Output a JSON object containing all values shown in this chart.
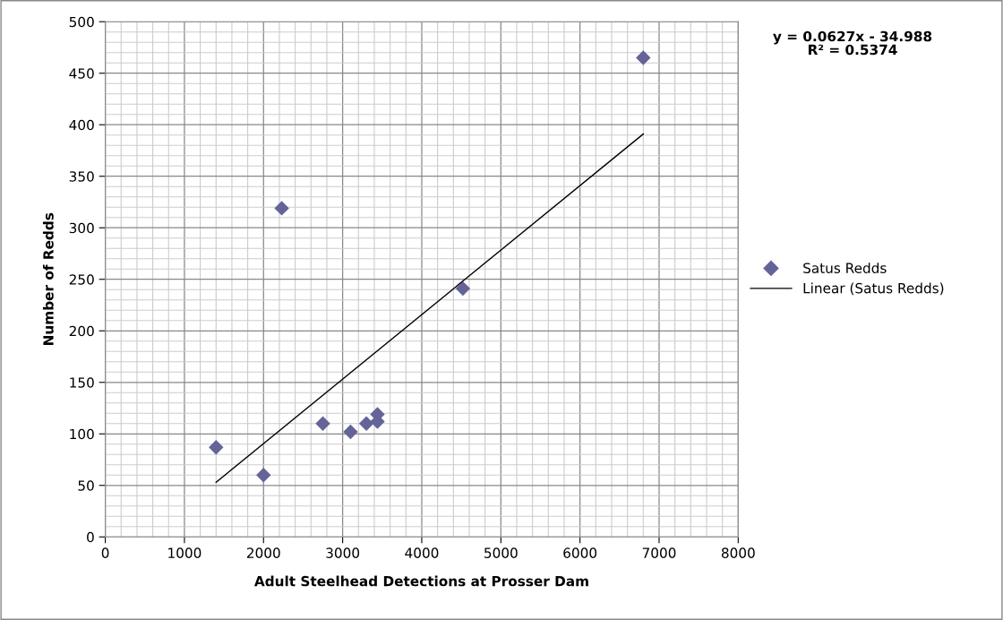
{
  "chart_data": {
    "type": "scatter",
    "xlabel": "Adult Steelhead Detections at Prosser Dam",
    "ylabel": "Number of Redds",
    "x": [
      1400,
      2000,
      2230,
      2750,
      3100,
      3300,
      3440,
      3440,
      4520,
      6800
    ],
    "series": [
      {
        "name": "Satus Redds",
        "color": "#646499",
        "marker": "diamond",
        "values": [
          87,
          60,
          319,
          110,
          102,
          110,
          119,
          112,
          241,
          465
        ]
      },
      {
        "name": "Linear (Satus Redds)",
        "color": "#000000",
        "type": "line",
        "marker": "none",
        "x": [
          1400,
          6800
        ],
        "values": [
          53,
          391
        ]
      }
    ],
    "xlim": [
      0,
      8000
    ],
    "xticks": [
      0,
      1000,
      2000,
      3000,
      4000,
      5000,
      6000,
      7000,
      8000
    ],
    "ylim": [
      0,
      500
    ],
    "yticks": [
      0,
      50,
      100,
      150,
      200,
      250,
      300,
      350,
      400,
      450,
      500
    ],
    "grid": true,
    "legend": "right",
    "annotations": [
      "y = 0.0627x - 34.988\nR² = 0.5374"
    ]
  }
}
